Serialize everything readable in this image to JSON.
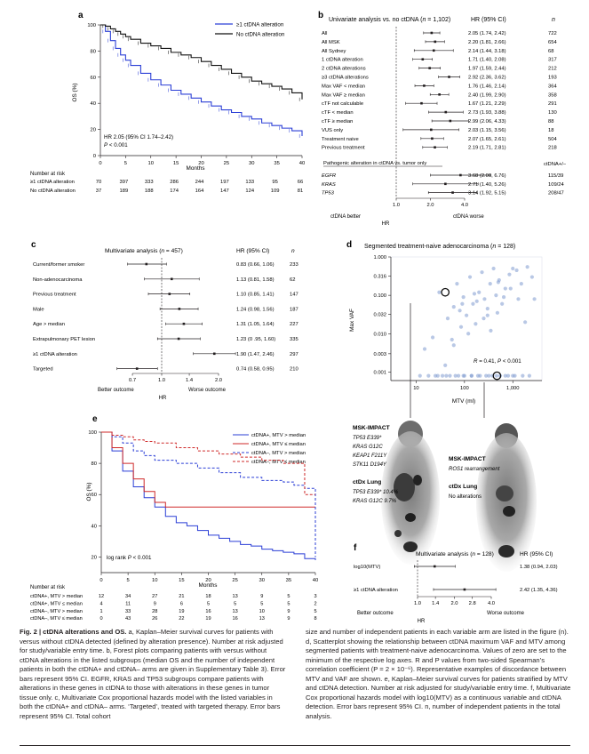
{
  "panel_a": {
    "letter": "a",
    "legend": [
      "≥1 ctDNA alteration",
      "No ctDNA alteration"
    ],
    "ylabel": "OS (%)",
    "xlabel": "Months",
    "yticks": [
      "100",
      "80",
      "60",
      "40",
      "20",
      "0"
    ],
    "xticks": [
      "0",
      "5",
      "10",
      "15",
      "20",
      "25",
      "30",
      "35",
      "40"
    ],
    "annot_hr": "HR 2.05 (95% CI 1.74–2.42)",
    "annot_p": "P < 0.001",
    "risk_title": "Number at risk",
    "risk_rows": [
      {
        "label": "≥1 ctDNA alteration",
        "values": [
          "70",
          "397",
          "333",
          "286",
          "244",
          "197",
          "133",
          "95",
          "66"
        ]
      },
      {
        "label": "No ctDNA alteration",
        "values": [
          "37",
          "189",
          "188",
          "174",
          "164",
          "147",
          "124",
          "109",
          "81"
        ]
      }
    ],
    "colors": {
      "alt": "#2b3fd6",
      "none": "#111111"
    }
  },
  "panel_b": {
    "letter": "b",
    "title": "Univariate analysis vs. no ctDNA (",
    "title_n": "n",
    "title_end": " = 1,102)",
    "hr_header": "HR (95% CI)",
    "n_header": "n",
    "rows": [
      {
        "label": "All",
        "hr": "2.05 (1.74, 2.42)",
        "n": "722"
      },
      {
        "label": "All MSK",
        "hr": "2.20 (1.81, 2.66)",
        "n": "654"
      },
      {
        "label": "All Sydney",
        "hr": "2.14 (1.44, 3.18)",
        "n": "68"
      },
      {
        "label": "1 ctDNA alteration",
        "hr": "1.71 (1.40, 2.08)",
        "n": "317"
      },
      {
        "label": "2 ctDNA alterations",
        "hr": "1.97 (1.59, 2.44)",
        "n": "212"
      },
      {
        "label": "≥3 ctDNA alterations",
        "hr": "2.92 (2.36, 3.62)",
        "n": "193"
      },
      {
        "label": "Max VAF < median",
        "hr": "1.76 (1.46, 2.14)",
        "n": "364"
      },
      {
        "label": "Max VAF ≥ median",
        "hr": "2.40 (1.99, 2.90)",
        "n": "358"
      },
      {
        "label": "cTF not calculable",
        "hr": "1.67 (1.21, 2.29)",
        "n": "291"
      },
      {
        "label": "cTF < median",
        "hr": "2.73 (1.93, 3.88)",
        "n": "130"
      },
      {
        "label": "cTF ≥ median",
        "hr": "2.99 (2.06, 4.33)",
        "n": "88"
      },
      {
        "label": "VUS only",
        "hr": "2.03 (1.15, 3.56)",
        "n": "18"
      },
      {
        "label": "Treatment naive",
        "hr": "2.07 (1.65, 2.61)",
        "n": "504"
      },
      {
        "label": "Previous treatment",
        "hr": "2.19 (1.71, 2.81)",
        "n": "218"
      }
    ],
    "subheader": "Pathogenic alteration in ctDNA vs. tumor only",
    "n2_header": "ctDNA+/–",
    "rows2": [
      {
        "label": "EGFR",
        "hr": "3.68 (2.00, 6.76)",
        "n": "115/39"
      },
      {
        "label": "KRAS",
        "hr": "2.71 (1.40, 5.26)",
        "n": "109/24"
      },
      {
        "label": "TP53",
        "hr": "3.14 (1.92, 5.15)",
        "n": "208/47"
      }
    ],
    "xticks": [
      "1.0",
      "2.0",
      "4.0"
    ],
    "better": "ctDNA better",
    "worse": "ctDNA worse",
    "xlabel": "HR"
  },
  "panel_c": {
    "letter": "c",
    "title": "Multivariate analysis (",
    "title_n": "n",
    "title_end": " = 457)",
    "hr_header": "HR (95% CI)",
    "n_header": "n",
    "rows": [
      {
        "label": "Current/former smoker",
        "hr": "0.83 (0.66, 1.06)",
        "n": "233"
      },
      {
        "label": "Non-adenocarcinoma",
        "hr": "1.13 (0.81, 1.58)",
        "n": "62"
      },
      {
        "label": "Previous treatment",
        "hr": "1.10 (0.85, 1.41)",
        "n": "147"
      },
      {
        "label": "Male",
        "hr": "1.24 (0.98, 1.56)",
        "n": "187"
      },
      {
        "label": "Age > median",
        "hr": "1.31 (1.05, 1.64)",
        "n": "227"
      },
      {
        "label": "Extrapulmonary PET lesion",
        "hr": "1.23 (0 .95, 1.60)",
        "n": "335"
      },
      {
        "label": "≥1 ctDNA alteration",
        "hr": "1.90 (1.47, 2.46)",
        "n": "297"
      },
      {
        "label": "Targeted",
        "hr": "0.74 (0.58, 0.95)",
        "n": "210"
      }
    ],
    "xticks": [
      "0.7",
      "1.0",
      "1.4",
      "2.0"
    ],
    "better": "Better outcome",
    "worse": "Worse outcome",
    "xlabel": "HR"
  },
  "panel_d": {
    "letter": "d",
    "title": "Segmented treatment-naive adenocarcinoma (",
    "title_n": "n",
    "title_end": " = 128)",
    "ylabel": "Max VAF",
    "xlabel": "MTV (ml)",
    "yticks": [
      "1.000",
      "0.316",
      "0.100",
      "0.032",
      "0.010",
      "0.003",
      "0.001"
    ],
    "xticks": [
      "10",
      "100",
      "1,000"
    ],
    "annot": "R = 0.41, P < 0.001",
    "color": "#7f9bd0"
  },
  "panel_pet": {
    "left_title": "MSK-IMPACT",
    "left_alts": [
      "TP53 E339*",
      "KRAS G12C",
      "KEAP1 F211Y",
      "STK11 D194Y"
    ],
    "left_ct_title": "ctDx Lung",
    "left_ct_alts": [
      "TP53 E339* 10.4%",
      "KRAS G12C 9.7%"
    ],
    "right_title": "MSK-IMPACT",
    "right_alt": "ROS1 rearrangement",
    "right_ct_title": "ctDx Lung",
    "right_ct_alt": "No alterations"
  },
  "panel_e": {
    "letter": "e",
    "legend": [
      "ctDNA+, MTV > median",
      "ctDNA+, MTV ≤ median",
      "ctDNA–, MTV > median",
      "ctDNA–, MTV ≤ median"
    ],
    "ylabel": "OS (%)",
    "xlabel": "Months",
    "yticks": [
      "100",
      "80",
      "60",
      "40",
      "20"
    ],
    "xticks": [
      "0",
      "5",
      "10",
      "15",
      "20",
      "25",
      "30",
      "35",
      "40"
    ],
    "annot": "log rank P < 0.001",
    "risk_title": "Number at risk",
    "risk_rows": [
      {
        "label": "ctDNA+, MTV > median",
        "values": [
          "12",
          "34",
          "27",
          "21",
          "18",
          "13",
          "9",
          "5",
          "3"
        ]
      },
      {
        "label": "ctDNA+, MTV ≤ median",
        "values": [
          "4",
          "11",
          "9",
          "6",
          "5",
          "5",
          "5",
          "5",
          "2"
        ]
      },
      {
        "label": "ctDNA–, MTV > median",
        "values": [
          "1",
          "33",
          "28",
          "19",
          "16",
          "13",
          "10",
          "9",
          "5"
        ]
      },
      {
        "label": "ctDNA–, MTV ≤ median",
        "values": [
          "0",
          "43",
          "26",
          "22",
          "19",
          "16",
          "13",
          "9",
          "8"
        ]
      }
    ],
    "colors": {
      "blue": "#2b3fd6",
      "red": "#cf2a2a"
    }
  },
  "panel_f": {
    "letter": "f",
    "title": "Multivariate analysis (",
    "title_n": "n",
    "title_end": " = 128)",
    "hr_header": "HR (95% CI)",
    "rows": [
      {
        "label": "log10(MTV)",
        "hr": "1.38 (0.94, 2.03)"
      },
      {
        "label": "≥1 ctDNA alteration",
        "hr": "2.42 (1.35, 4.36)"
      }
    ],
    "xticks": [
      "1.0",
      "1.4",
      "2.0",
      "2.8",
      "4.0"
    ],
    "better": "Better outcome",
    "worse": "Worse outcome",
    "xlabel": "HR"
  },
  "caption": {
    "lead": "Fig. 2 | ctDNA alterations and OS.",
    "left": " a, Kaplan–Meier survival curves for patients with versus without ctDNA detected (defined by alteration presence). Number at risk adjusted for study/variable entry time. b, Forest plots comparing patients with versus without ctDNA alterations in the listed subgroups (median OS and the number of independent patients in both the ctDNA+ and ctDNA– arms are given in Supplementary Table 3). Error bars represent 95% CI. EGFR, KRAS and TP53 subgroups compare patients with alterations in these genes in ctDNA to those with alterations in these genes in tumor tissue only. c, Multivariate Cox proportional hazards model with the listed variables in both the ctDNA+ and ctDNA– arms. ‘Targeted’, treated with targeted therapy. Error bars represent 95% CI. Total cohort",
    "right": "size and number of independent patients in each variable arm are listed in the figure (n). d, Scatterplot showing the relationship between ctDNA maximum VAF and MTV among segmented patients with treatment-naive adenocarcinoma. Values of zero are set to the minimum of the respective log axes. R and P values from two-sided Spearman’s correlation coefficient (P = 2 × 10⁻⁶). Representative examples of discordance between MTV and VAF are shown. e, Kaplan–Meier survival curves for patients stratified by MTV and ctDNA detection. Number at risk adjusted for study/variable entry time. f, Multivariate Cox proportional hazards model with log10(MTV) as a continuous variable and ctDNA detection. Error bars represent 95% CI. n, number of independent patients in the total analysis."
  },
  "chart_data": [
    {
      "type": "line",
      "title": "Panel a — Kaplan–Meier OS",
      "xlabel": "Months",
      "ylabel": "OS (%)",
      "xlim": [
        0,
        40
      ],
      "ylim": [
        0,
        100
      ],
      "series": [
        {
          "name": "≥1 ctDNA alteration",
          "x": [
            0,
            1,
            2,
            3,
            4,
            5,
            6,
            8,
            10,
            12,
            14,
            16,
            18,
            20,
            22,
            24,
            26,
            28,
            30,
            32,
            34,
            36,
            38,
            40
          ],
          "values": [
            100,
            95,
            88,
            82,
            77,
            73,
            69,
            63,
            58,
            54,
            50,
            47,
            44,
            41,
            38,
            35,
            33,
            30,
            28,
            25,
            23,
            21,
            19,
            15
          ]
        },
        {
          "name": "No ctDNA alteration",
          "x": [
            0,
            1,
            2,
            3,
            4,
            5,
            6,
            8,
            10,
            12,
            14,
            16,
            18,
            20,
            22,
            24,
            26,
            28,
            30,
            32,
            34,
            36,
            38,
            40
          ],
          "values": [
            100,
            99,
            97,
            95,
            93,
            91,
            89,
            86,
            84,
            82,
            79,
            77,
            75,
            72,
            69,
            66,
            63,
            60,
            57,
            55,
            53,
            51,
            48,
            43
          ]
        }
      ]
    },
    {
      "type": "scatter",
      "title": "Panel b — Univariate HR forest plot",
      "xlabel": "HR",
      "categories": [
        "All",
        "All MSK",
        "All Sydney",
        "1 ctDNA alteration",
        "2 ctDNA alterations",
        "≥3 ctDNA alterations",
        "Max VAF < median",
        "Max VAF ≥ median",
        "cTF not calculable",
        "cTF < median",
        "cTF ≥ median",
        "VUS only",
        "Treatment naive",
        "Previous treatment",
        "EGFR",
        "KRAS",
        "TP53"
      ],
      "hr": [
        2.05,
        2.2,
        2.14,
        1.71,
        1.97,
        2.92,
        1.76,
        2.4,
        1.67,
        2.73,
        2.99,
        2.03,
        2.07,
        2.19,
        3.68,
        2.71,
        3.14
      ],
      "lo": [
        1.74,
        1.81,
        1.44,
        1.4,
        1.59,
        2.36,
        1.46,
        1.99,
        1.21,
        1.93,
        2.06,
        1.15,
        1.65,
        1.71,
        2.0,
        1.4,
        1.92
      ],
      "hi": [
        2.42,
        2.66,
        3.18,
        2.08,
        2.44,
        3.62,
        2.14,
        2.9,
        2.29,
        3.88,
        4.33,
        3.56,
        2.61,
        2.81,
        6.76,
        5.26,
        5.15
      ]
    },
    {
      "type": "scatter",
      "title": "Panel c — Multivariate HR forest plot",
      "xlabel": "HR",
      "categories": [
        "Current/former smoker",
        "Non-adenocarcinoma",
        "Previous treatment",
        "Male",
        "Age > median",
        "Extrapulmonary PET lesion",
        "≥1 ctDNA alteration",
        "Targeted"
      ],
      "hr": [
        0.83,
        1.13,
        1.1,
        1.24,
        1.31,
        1.23,
        1.9,
        0.74
      ],
      "lo": [
        0.66,
        0.81,
        0.85,
        0.98,
        1.05,
        0.95,
        1.47,
        0.58
      ],
      "hi": [
        1.06,
        1.58,
        1.41,
        1.56,
        1.64,
        1.6,
        2.46,
        0.95
      ]
    },
    {
      "type": "scatter",
      "title": "Panel d — Max VAF vs MTV",
      "xlabel": "MTV (ml)",
      "ylabel": "Max VAF",
      "xlim": [
        3,
        4000
      ],
      "ylim": [
        0.0006,
        1
      ],
      "x": [
        15,
        22,
        30,
        45,
        60,
        70,
        85,
        95,
        110,
        130,
        150,
        170,
        200,
        230,
        260,
        300,
        340,
        400,
        450,
        520,
        600,
        700,
        850,
        1000,
        1200,
        1500,
        2000,
        2500,
        40,
        55,
        80,
        120,
        180,
        250,
        350,
        480,
        650,
        900,
        1300,
        1800,
        25,
        35,
        50,
        75,
        100,
        140,
        190,
        280,
        380,
        550,
        800,
        1100,
        1600,
        2200,
        60,
        90,
        160,
        300,
        500,
        2800,
        12,
        18,
        28,
        42,
        65,
        95,
        140,
        210,
        320,
        460,
        700,
        1000
      ],
      "y": [
        0.004,
        0.008,
        0.12,
        0.025,
        0.05,
        0.2,
        0.015,
        0.09,
        0.03,
        0.3,
        0.06,
        0.018,
        0.12,
        0.4,
        0.08,
        0.03,
        0.2,
        0.5,
        0.1,
        0.25,
        0.06,
        0.15,
        0.35,
        0.5,
        0.45,
        0.2,
        0.55,
        0.3,
        0.0015,
        0.007,
        0.04,
        0.01,
        0.07,
        0.025,
        0.012,
        0.035,
        0.09,
        0.15,
        0.08,
        0.02,
        0.0008,
        0.0008,
        0.0008,
        0.0008,
        0.0008,
        0.0008,
        0.0008,
        0.0008,
        0.0008,
        0.0008,
        0.0008,
        0.0008,
        0.0008,
        0.0008,
        0.005,
        0.06,
        0.11,
        0.045,
        0.22,
        0.08,
        0.0008,
        0.0008,
        0.0008,
        0.0008,
        0.0008,
        0.0008,
        0.0008,
        0.0008,
        0.0008,
        0.0008,
        0.0008,
        0.0008
      ]
    },
    {
      "type": "line",
      "title": "Panel e — Kaplan–Meier OS by MTV and ctDNA",
      "xlabel": "Months",
      "ylabel": "OS (%)",
      "xlim": [
        0,
        40
      ],
      "ylim": [
        10,
        100
      ],
      "series": [
        {
          "name": "ctDNA+, MTV > median",
          "x": [
            0,
            2,
            4,
            6,
            8,
            10,
            12,
            14,
            16,
            18,
            20,
            22,
            24,
            26,
            28,
            30,
            32,
            34,
            36,
            38,
            40
          ],
          "values": [
            100,
            88,
            75,
            65,
            58,
            52,
            46,
            42,
            40,
            37,
            34,
            32,
            30,
            28,
            27,
            25,
            24,
            23,
            22,
            19,
            18
          ]
        },
        {
          "name": "ctDNA+, MTV ≤ median",
          "x": [
            0,
            2,
            4,
            6,
            8,
            10,
            12,
            16,
            20,
            24,
            28,
            32,
            36,
            38,
            40
          ],
          "values": [
            100,
            90,
            80,
            70,
            62,
            55,
            52,
            52,
            52,
            52,
            52,
            52,
            52,
            52,
            52
          ]
        },
        {
          "name": "ctDNA–, MTV > median",
          "x": [
            0,
            2,
            4,
            6,
            8,
            10,
            14,
            18,
            22,
            26,
            30,
            34,
            36,
            38,
            40
          ],
          "values": [
            100,
            97,
            93,
            88,
            85,
            82,
            80,
            77,
            74,
            71,
            69,
            68,
            66,
            64,
            20
          ]
        },
        {
          "name": "ctDNA–, MTV ≤ median",
          "x": [
            0,
            2,
            4,
            6,
            8,
            10,
            14,
            18,
            22,
            26,
            30,
            34,
            38,
            40
          ],
          "values": [
            100,
            98,
            97,
            95,
            94,
            93,
            90,
            88,
            86,
            84,
            82,
            80,
            60,
            60
          ]
        }
      ]
    },
    {
      "type": "scatter",
      "title": "Panel f — Multivariate HR forest plot",
      "xlabel": "HR",
      "categories": [
        "log10(MTV)",
        "≥1 ctDNA alteration"
      ],
      "hr": [
        1.38,
        2.42
      ],
      "lo": [
        0.94,
        1.35
      ],
      "hi": [
        2.03,
        4.36
      ]
    }
  ]
}
